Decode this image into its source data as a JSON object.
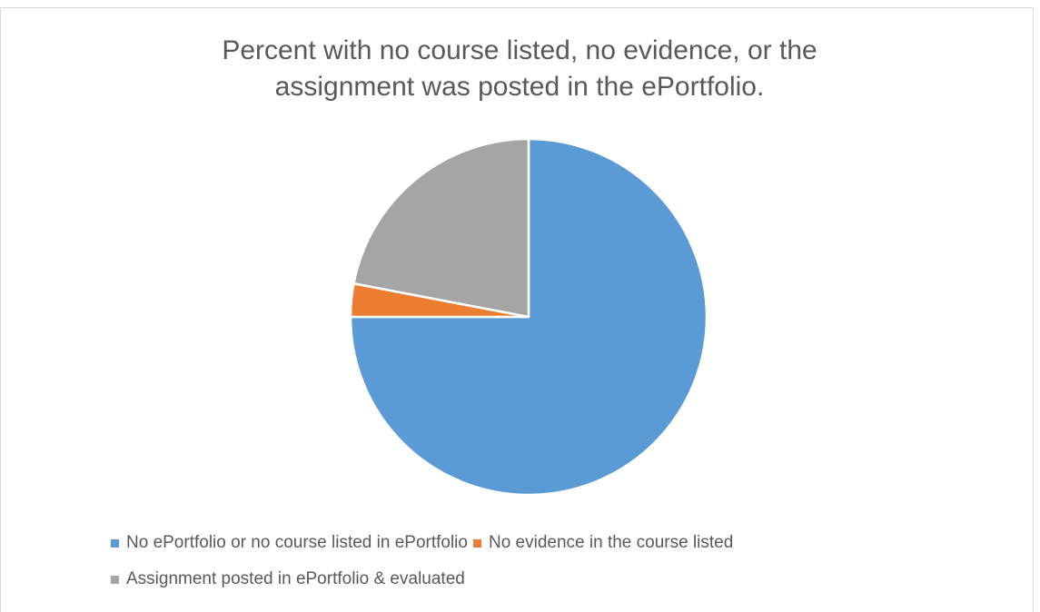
{
  "chart_data": {
    "type": "pie",
    "title": "Percent with no course listed, no evidence, or the assignment was posted in the ePortfolio.",
    "categories": [
      "No ePortfolio or no course listed in ePortfolio",
      "No evidence in the course listed",
      "Assignment posted in ePortfolio & evaluated"
    ],
    "values": [
      75,
      3,
      22
    ],
    "colors": [
      "#5b9bd5",
      "#ed7d31",
      "#a5a5a5"
    ],
    "legend": "bottom"
  }
}
